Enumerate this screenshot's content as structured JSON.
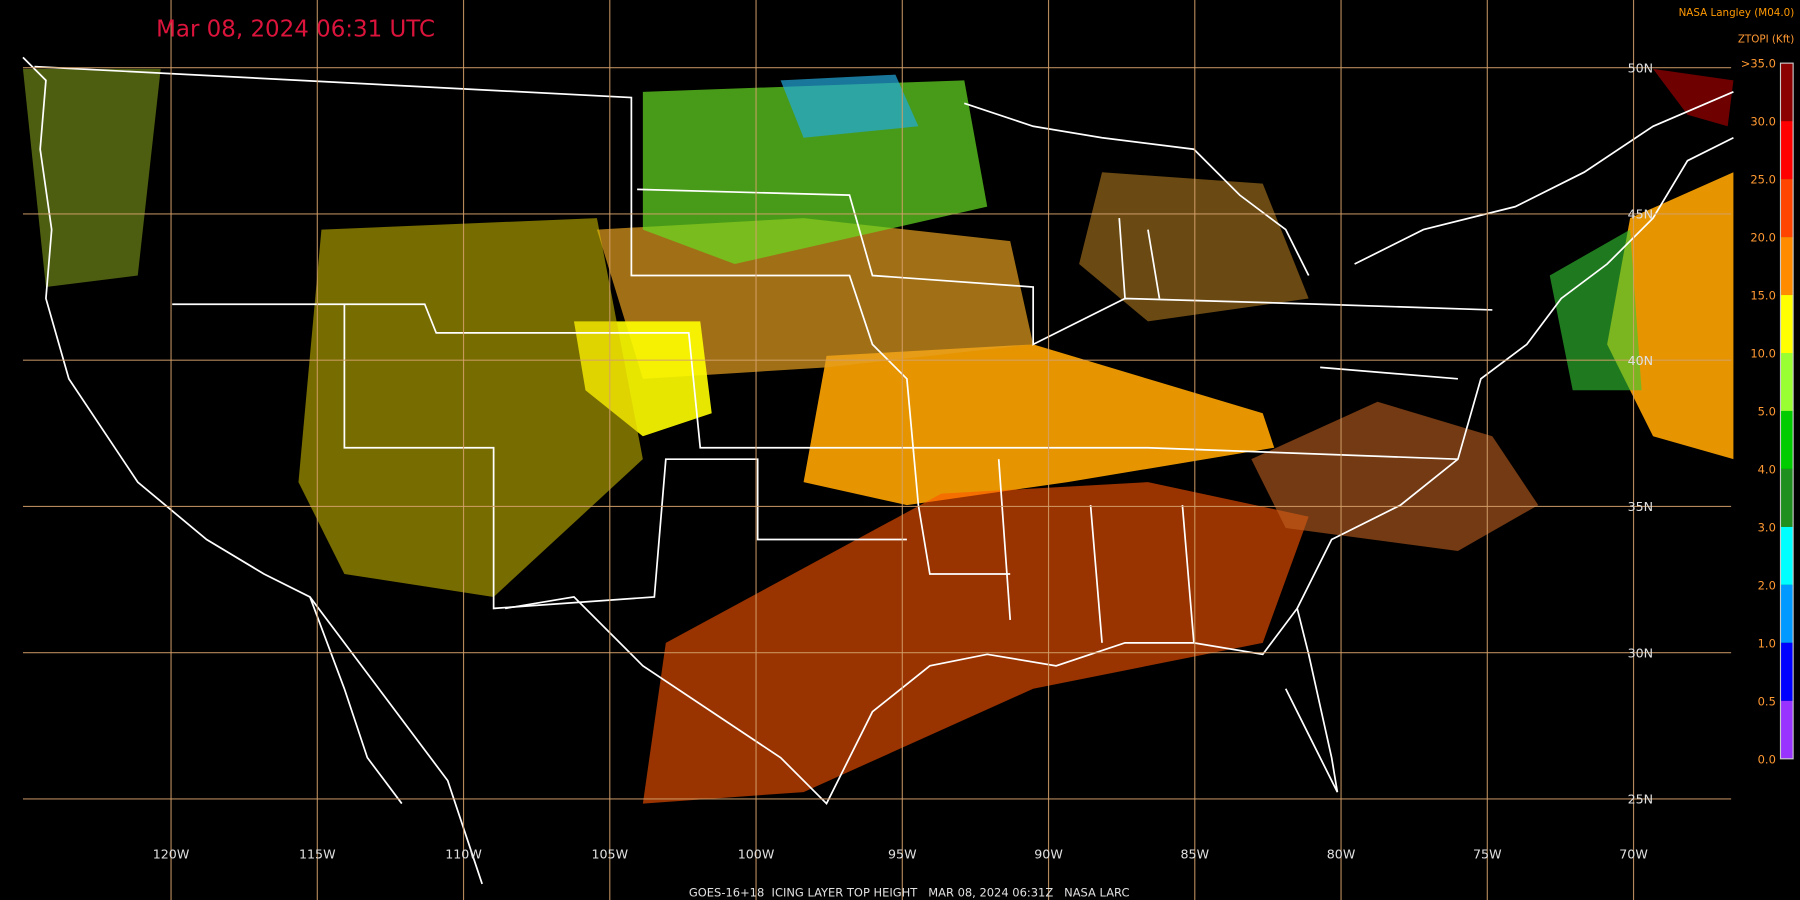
{
  "header": {
    "timestamp": "Mar 08, 2024 06:31 UTC",
    "source": "NASA Langley (M04.0)"
  },
  "legend": {
    "title": "ZTOPI (Kft)",
    "labels": [
      ">35.0",
      "30.0",
      "25.0",
      "20.0",
      "15.0",
      "10.0",
      "5.0",
      "4.0",
      "3.0",
      "2.0",
      "1.0",
      "0.5",
      "0.0"
    ],
    "colors": [
      "#8b0000",
      "#ff0000",
      "#ff4500",
      "#ff8c00",
      "#ffff00",
      "#99ff33",
      "#00cc00",
      "#1f8f1f",
      "#00ffff",
      "#0099ff",
      "#0000ff",
      "#9933ff"
    ]
  },
  "grid": {
    "longitudes": [
      "120W",
      "115W",
      "110W",
      "105W",
      "100W",
      "95W",
      "90W",
      "85W",
      "80W",
      "75W",
      "70W"
    ],
    "latitudes": [
      "50N",
      "45N",
      "40N",
      "35N",
      "30N",
      "25N"
    ]
  },
  "footer": "GOES-16+18  ICING LAYER TOP HEIGHT   MAR 08, 2024 06:31Z   NASA LARC"
}
